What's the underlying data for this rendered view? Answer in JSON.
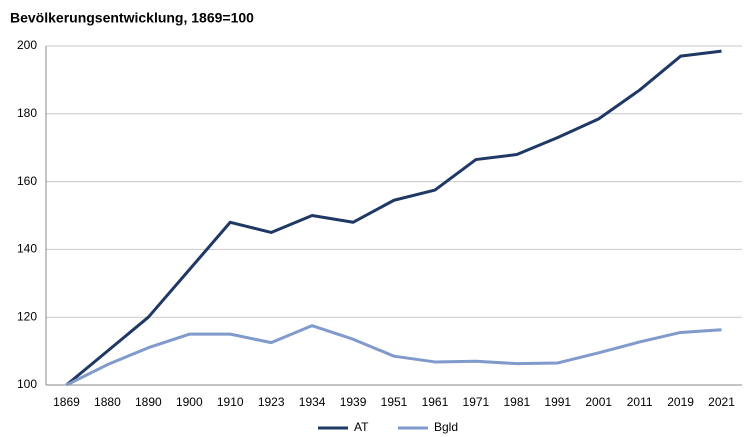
{
  "chart_data": {
    "type": "line",
    "title": "Bevölkerungsentwicklung, 1869=100",
    "categories": [
      "1869",
      "1880",
      "1890",
      "1900",
      "1910",
      "1923",
      "1934",
      "1939",
      "1951",
      "1961",
      "1971",
      "1981",
      "1991",
      "2001",
      "2011",
      "2019",
      "2021"
    ],
    "series": [
      {
        "name": "AT",
        "color": "#1f3864",
        "values": [
          100,
          110,
          120,
          134,
          148,
          145,
          150,
          148,
          154.5,
          157.5,
          166.5,
          168,
          173,
          178.5,
          187,
          197,
          198.5
        ]
      },
      {
        "name": "Bgld",
        "color": "#7f9acb",
        "values": [
          100,
          106,
          111,
          115,
          115,
          112.5,
          117.5,
          113.5,
          108.5,
          106.8,
          107,
          106.3,
          106.5,
          109.5,
          112.7,
          115.5,
          116.3
        ]
      }
    ],
    "ylim": [
      100,
      200
    ],
    "yticks": [
      100,
      120,
      140,
      160,
      180,
      200
    ],
    "grid": true,
    "legend": "bottom"
  }
}
